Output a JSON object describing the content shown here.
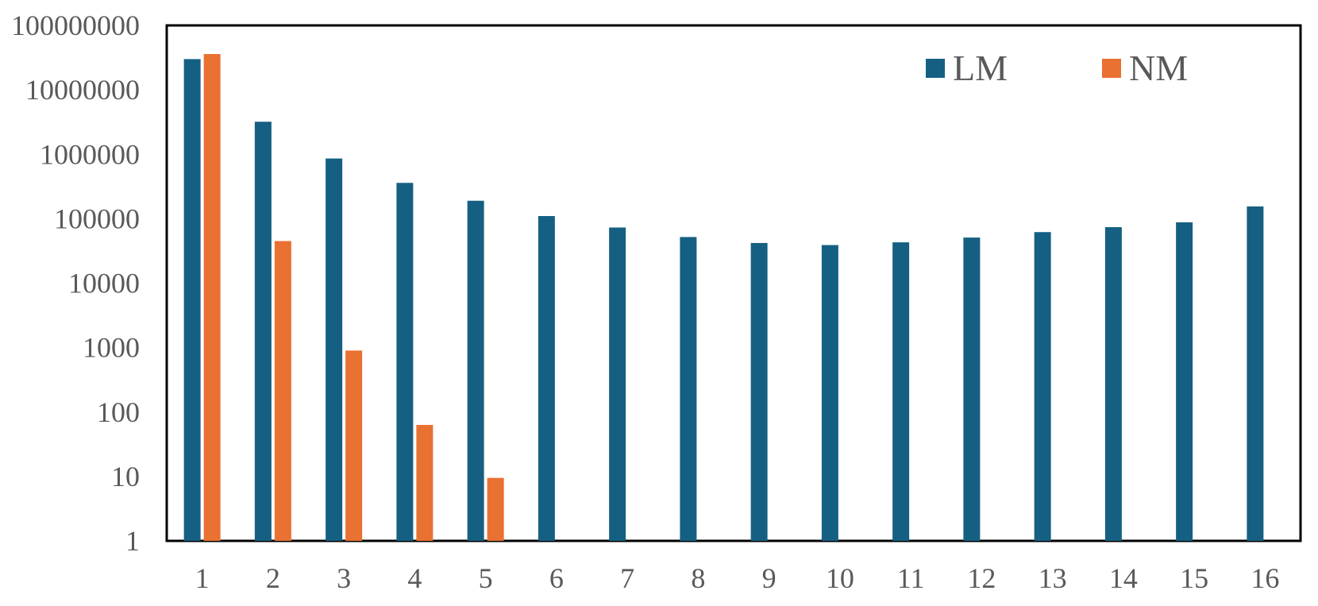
{
  "chart_data": {
    "type": "bar",
    "title": "",
    "xlabel": "",
    "ylabel": "",
    "y_scale": "log",
    "ylim": [
      1,
      100000000
    ],
    "y_ticks": [
      "1",
      "10",
      "100",
      "1000",
      "10000",
      "100000",
      "1000000",
      "10000000",
      "100000000"
    ],
    "categories": [
      "1",
      "2",
      "3",
      "4",
      "5",
      "6",
      "7",
      "8",
      "9",
      "10",
      "11",
      "12",
      "13",
      "14",
      "15",
      "16"
    ],
    "grid": false,
    "legend_position": "top-right",
    "series": [
      {
        "name": "LM",
        "color": "#156082",
        "values": [
          30000000,
          3200000,
          860000,
          360000,
          190000,
          110000,
          73000,
          52000,
          42000,
          39000,
          43000,
          51000,
          62000,
          74000,
          88000,
          155000
        ]
      },
      {
        "name": "NM",
        "color": "#E97132",
        "values": [
          36000000,
          45000,
          900,
          63,
          9.5,
          null,
          null,
          null,
          null,
          null,
          null,
          null,
          null,
          null,
          null,
          null
        ]
      }
    ]
  }
}
